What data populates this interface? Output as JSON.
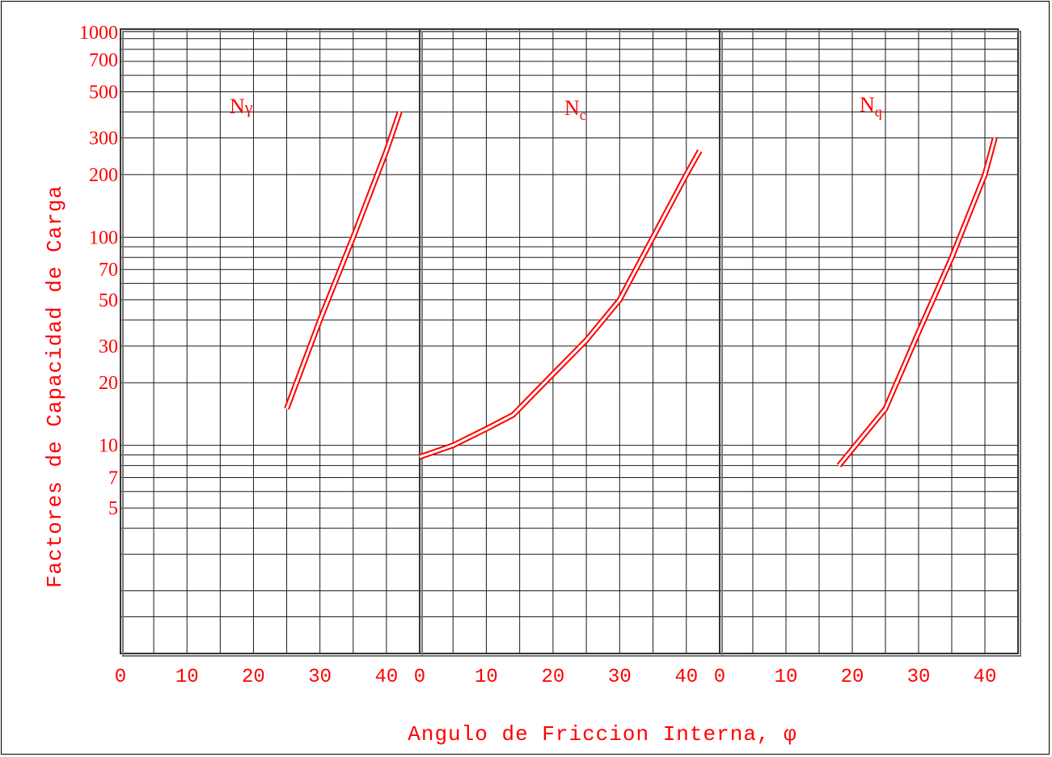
{
  "chart_data": {
    "type": "line",
    "y_axis_label": "Factores de Capacidad de Carga",
    "x_axis_label": "Angulo de Friccion Interna, φ",
    "y_scale": "log",
    "ylim": [
      1,
      1000
    ],
    "y_tick_labels": [
      {
        "value": 1000,
        "label": "1000"
      },
      {
        "value": 700,
        "label": "700"
      },
      {
        "value": 500,
        "label": "500"
      },
      {
        "value": 300,
        "label": "300"
      },
      {
        "value": 200,
        "label": "200"
      },
      {
        "value": 100,
        "label": "100"
      },
      {
        "value": 70,
        "label": "70"
      },
      {
        "value": 50,
        "label": "50"
      },
      {
        "value": 30,
        "label": "30"
      },
      {
        "value": 20,
        "label": "20"
      },
      {
        "value": 10,
        "label": "10"
      },
      {
        "value": 7,
        "label": "7"
      },
      {
        "value": 5,
        "label": "5"
      }
    ],
    "y_grid_values": [
      1,
      1.5,
      2,
      3,
      4,
      5,
      6,
      7,
      8,
      9,
      10,
      20,
      30,
      40,
      50,
      60,
      70,
      80,
      90,
      100,
      200,
      300,
      400,
      500,
      600,
      700,
      800,
      900,
      1000
    ],
    "x_grid_step": 5,
    "grid": true,
    "panels": [
      {
        "label_main": "N",
        "label_sub": "γ",
        "sub_style": "inline",
        "xlim": [
          0,
          45
        ],
        "x_tick_labels": [
          "0",
          "10",
          "20",
          "30",
          "40"
        ],
        "x_tick_values": [
          0,
          10,
          20,
          30,
          40
        ],
        "series": [
          {
            "x": [
              25,
              30,
              35,
              40,
              42
            ],
            "y": [
              15,
              40,
              100,
              260,
              400
            ]
          }
        ]
      },
      {
        "label_main": "N",
        "label_sub": "c",
        "sub_style": "subscript",
        "xlim": [
          0,
          45
        ],
        "x_tick_labels": [
          "0",
          "10",
          "20",
          "30",
          "40"
        ],
        "x_tick_values": [
          0,
          10,
          20,
          30,
          40
        ],
        "series": [
          {
            "x": [
              0,
              5,
              10,
              14,
              20,
              25,
              30,
              35,
              40,
              42
            ],
            "y": [
              8.8,
              10,
              12,
              14,
              22,
              32,
              50,
              100,
              200,
              260
            ]
          }
        ]
      },
      {
        "label_main": "N",
        "label_sub": "q",
        "sub_style": "subscript",
        "xlim": [
          0,
          45
        ],
        "x_tick_labels": [
          "0",
          "10",
          "20",
          "30",
          "40"
        ],
        "x_tick_values": [
          0,
          10,
          20,
          30,
          40
        ],
        "series": [
          {
            "x": [
              18,
              25,
              30,
              35,
              40,
              41.5
            ],
            "y": [
              8,
              15,
              35,
              80,
              200,
              300
            ]
          }
        ]
      }
    ]
  }
}
